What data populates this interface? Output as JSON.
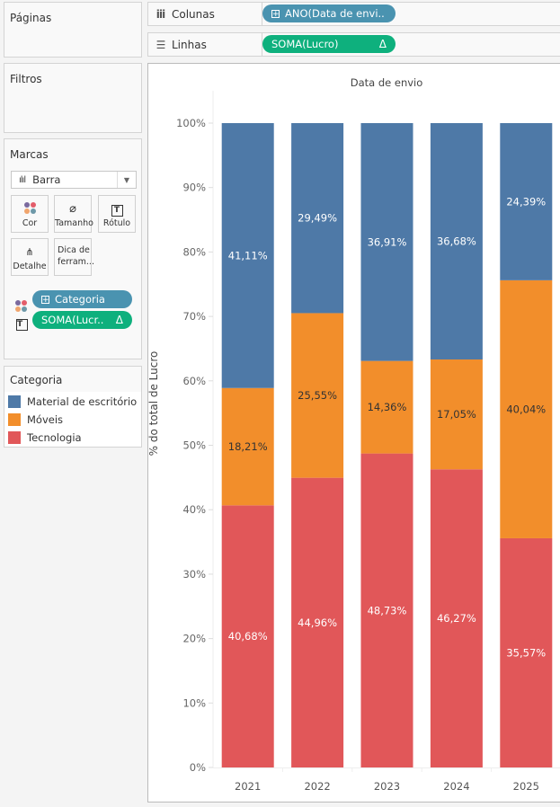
{
  "panels": {
    "pages_title": "Páginas",
    "filters_title": "Filtros",
    "marks_title": "Marcas",
    "legend_title": "Categoria"
  },
  "shelves": {
    "columns": {
      "label": "Colunas",
      "icon": "columns-icon",
      "pill": "ANO(Data de envi.."
    },
    "rows": {
      "label": "Linhas",
      "icon": "rows-icon",
      "pill": "SOMA(Lucro)",
      "pill_suffix": "Δ"
    }
  },
  "marks": {
    "type": "Barra",
    "buttons": [
      {
        "label": "Cor",
        "icon": "color-icon"
      },
      {
        "label": "Tamanho",
        "icon": "size-icon"
      },
      {
        "label": "Rótulo",
        "icon": "label-icon"
      },
      {
        "label": "Detalhe",
        "icon": "detail-icon"
      },
      {
        "label": "Dica de ferram...",
        "icon": "tooltip-icon"
      }
    ],
    "fields": [
      {
        "icon": "color-icon",
        "pill": "Categoria",
        "kind": "dimension"
      },
      {
        "icon": "label-icon",
        "pill": "SOMA(Lucr..",
        "suffix": "Δ",
        "kind": "measure"
      }
    ]
  },
  "colors": {
    "Material de escritório": "#4e79a7",
    "Móveis": "#f28e2b",
    "Tecnologia": "#e15759",
    "pill_dimension": "#4a93b0",
    "pill_measure": "#0eb07d"
  },
  "chart_data": {
    "type": "bar",
    "stacked": true,
    "title": "Data de envio",
    "xlabel": "",
    "ylabel": "% do total de Lucro",
    "ylim": [
      0,
      100
    ],
    "yticks": [
      "0%",
      "10%",
      "20%",
      "30%",
      "40%",
      "50%",
      "60%",
      "70%",
      "80%",
      "90%",
      "100%"
    ],
    "categories": [
      "2021",
      "2022",
      "2023",
      "2024",
      "2025"
    ],
    "legend_position": "left-panel",
    "series": [
      {
        "name": "Tecnologia",
        "values": [
          40.68,
          44.96,
          48.73,
          46.27,
          35.57
        ],
        "labels": [
          "40,68%",
          "44,96%",
          "48,73%",
          "46,27%",
          "35,57%"
        ],
        "label_color": "#ffffff"
      },
      {
        "name": "Móveis",
        "values": [
          18.21,
          25.55,
          14.36,
          17.05,
          40.04
        ],
        "labels": [
          "18,21%",
          "25,55%",
          "14,36%",
          "17,05%",
          "40,04%"
        ],
        "label_color": "#333333"
      },
      {
        "name": "Material de escritório",
        "values": [
          41.11,
          29.49,
          36.91,
          36.68,
          24.39
        ],
        "labels": [
          "41,11%",
          "29,49%",
          "36,91%",
          "36,68%",
          "24,39%"
        ],
        "label_color": "#ffffff"
      }
    ]
  }
}
